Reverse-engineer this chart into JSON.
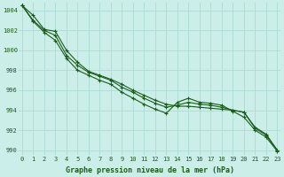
{
  "xlabel": "Graphe pression niveau de la mer (hPa)",
  "bg_color": "#cceee8",
  "grid_color": "#b0ddd8",
  "line_color": "#1a5c1a",
  "ylim": [
    989.5,
    1004.8
  ],
  "xlim": [
    -0.3,
    23.3
  ],
  "yticks": [
    990,
    992,
    994,
    996,
    998,
    1000,
    1002,
    1004
  ],
  "xticks": [
    0,
    1,
    2,
    3,
    4,
    5,
    6,
    7,
    8,
    9,
    10,
    11,
    12,
    13,
    14,
    15,
    16,
    17,
    18,
    19,
    20,
    21,
    22,
    23
  ],
  "series": [
    [
      1004.5,
      1003.5,
      1002.1,
      1001.9,
      1000.0,
      998.8,
      997.9,
      997.5,
      997.1,
      996.6,
      996.0,
      995.5,
      995.0,
      994.6,
      994.4,
      994.4,
      994.3,
      994.2,
      994.1,
      994.0,
      993.8,
      992.2,
      991.5,
      990.0
    ],
    [
      1004.5,
      1003.0,
      1002.0,
      1001.5,
      999.5,
      998.5,
      997.8,
      997.4,
      997.0,
      996.3,
      995.8,
      995.2,
      994.7,
      994.3,
      994.5,
      994.8,
      994.6,
      994.5,
      994.3,
      994.0,
      993.8,
      992.3,
      991.6,
      990.0
    ],
    [
      1004.5,
      1002.9,
      1001.8,
      1001.0,
      999.2,
      998.0,
      997.5,
      997.0,
      996.6,
      995.8,
      995.2,
      994.6,
      994.1,
      993.7,
      994.8,
      995.2,
      994.8,
      994.7,
      994.5,
      993.9,
      993.3,
      992.0,
      991.3,
      989.9
    ]
  ]
}
